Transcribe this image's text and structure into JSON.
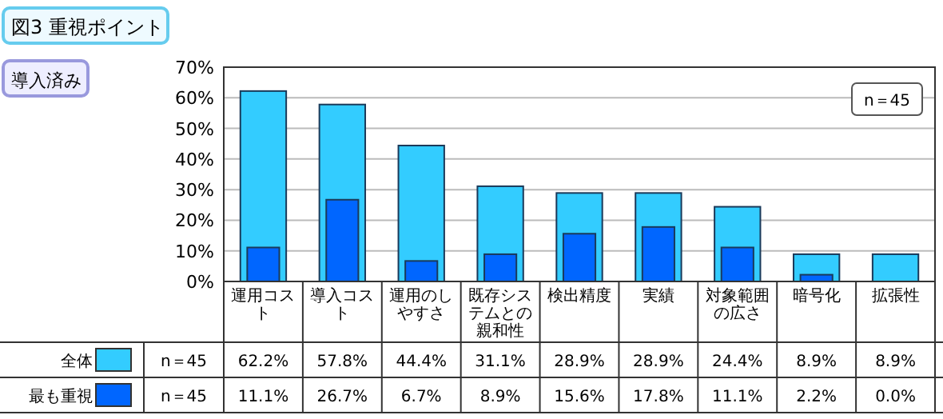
{
  "chart_data": {
    "type": "bar",
    "title": "図3 重視ポイント",
    "subtitle": "導入済み",
    "categories": [
      "運用コスト",
      "導入コスト",
      "運用のしやすさ",
      "既存システムとの親和性",
      "検出精度",
      "実績",
      "対象範囲の広さ",
      "暗号化",
      "拡張性"
    ],
    "series": [
      {
        "name": "全体",
        "color": "#33ccff",
        "values": [
          62.2,
          57.8,
          44.4,
          31.1,
          28.9,
          28.9,
          24.4,
          8.9,
          8.9
        ],
        "value_labels": [
          "62.2%",
          "57.8%",
          "44.4%",
          "31.1%",
          "28.9%",
          "28.9%",
          "24.4%",
          "8.9%",
          "8.9%"
        ]
      },
      {
        "name": "最も重視",
        "color": "#0066ff",
        "values": [
          11.1,
          26.7,
          6.7,
          8.9,
          15.6,
          17.8,
          11.1,
          2.2,
          0.0
        ],
        "value_labels": [
          "11.1%",
          "26.7%",
          "6.7%",
          "8.9%",
          "15.6%",
          "17.8%",
          "11.1%",
          "2.2%",
          "0.0%"
        ]
      }
    ],
    "annotations": [
      "n＝45",
      "n＝45",
      "n＝45"
    ],
    "ylim": [
      0,
      70
    ],
    "yticks": [
      {
        "value": 0,
        "label": "0%"
      },
      {
        "value": 10,
        "label": "10%"
      },
      {
        "value": 20,
        "label": "20%"
      },
      {
        "value": 30,
        "label": "30%"
      },
      {
        "value": 40,
        "label": "40%"
      },
      {
        "value": 50,
        "label": "50%"
      },
      {
        "value": 60,
        "label": "60%"
      },
      {
        "value": 70,
        "label": "70%"
      }
    ],
    "grid": "y",
    "legend": "bottom"
  }
}
